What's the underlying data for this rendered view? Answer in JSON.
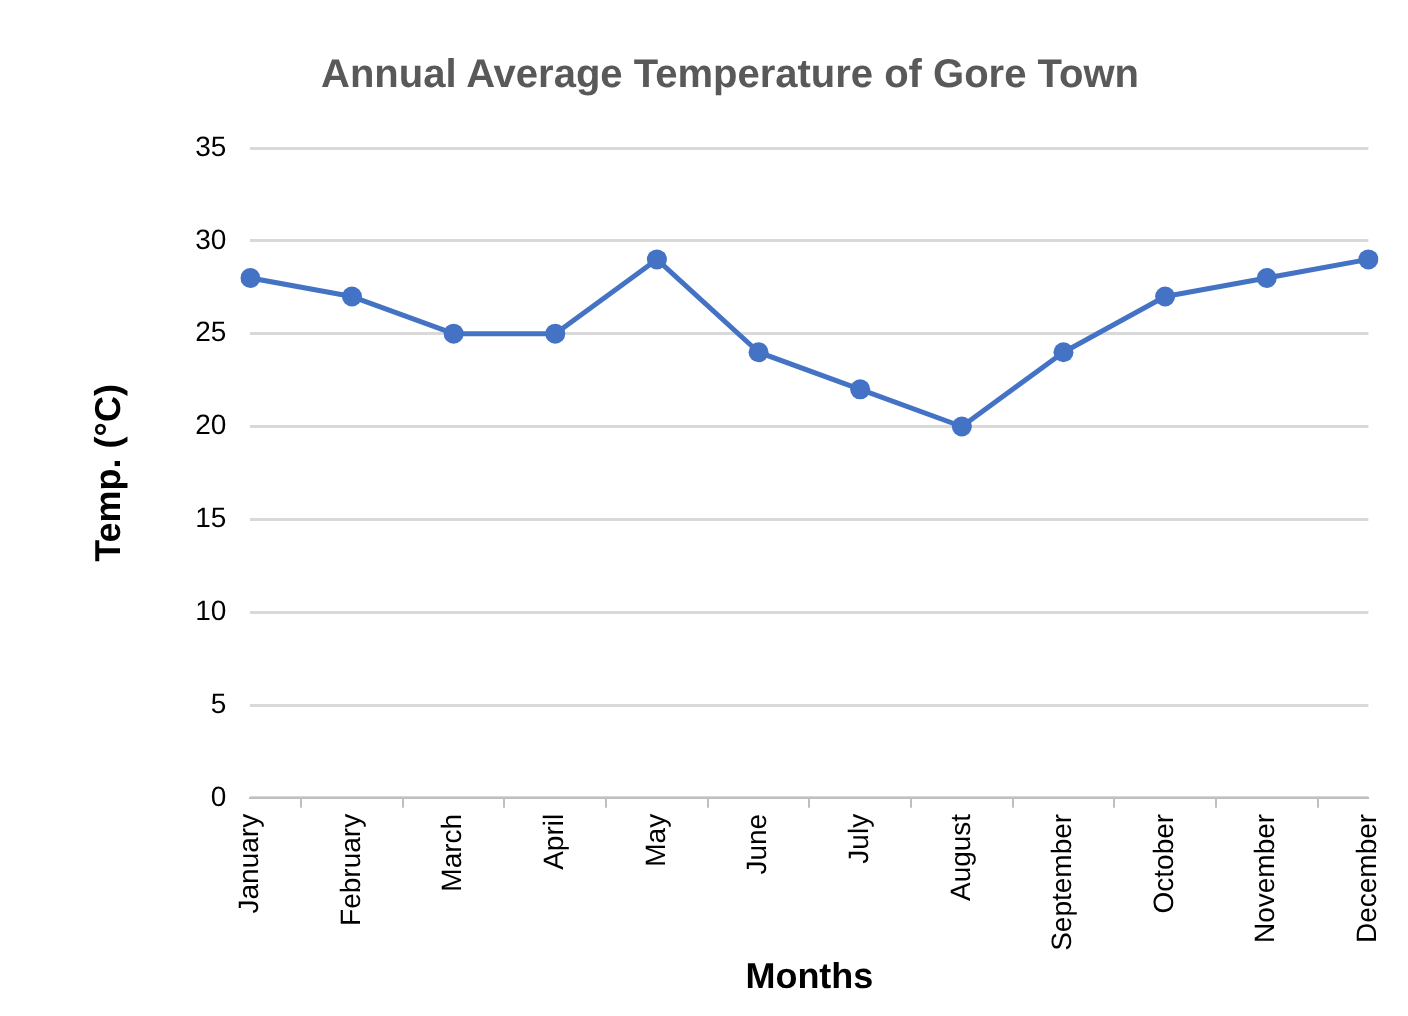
{
  "chart_data": {
    "type": "line",
    "title": "Annual Average Temperature of Gore Town",
    "xlabel": "Months",
    "ylabel": "Temp. (°C)",
    "categories": [
      "January",
      "February",
      "March",
      "April",
      "May",
      "June",
      "July",
      "August",
      "September",
      "October",
      "November",
      "December"
    ],
    "series": [
      {
        "color": "#4472c4",
        "values": [
          28,
          27,
          25,
          25,
          29,
          24,
          22,
          20,
          24,
          27,
          28,
          29
        ]
      }
    ],
    "ylim": [
      0,
      35
    ],
    "yticks": [
      0,
      5,
      10,
      15,
      20,
      25,
      30,
      35
    ],
    "grid": "y",
    "marker": "circle",
    "line_style": "solid",
    "legend": false
  }
}
